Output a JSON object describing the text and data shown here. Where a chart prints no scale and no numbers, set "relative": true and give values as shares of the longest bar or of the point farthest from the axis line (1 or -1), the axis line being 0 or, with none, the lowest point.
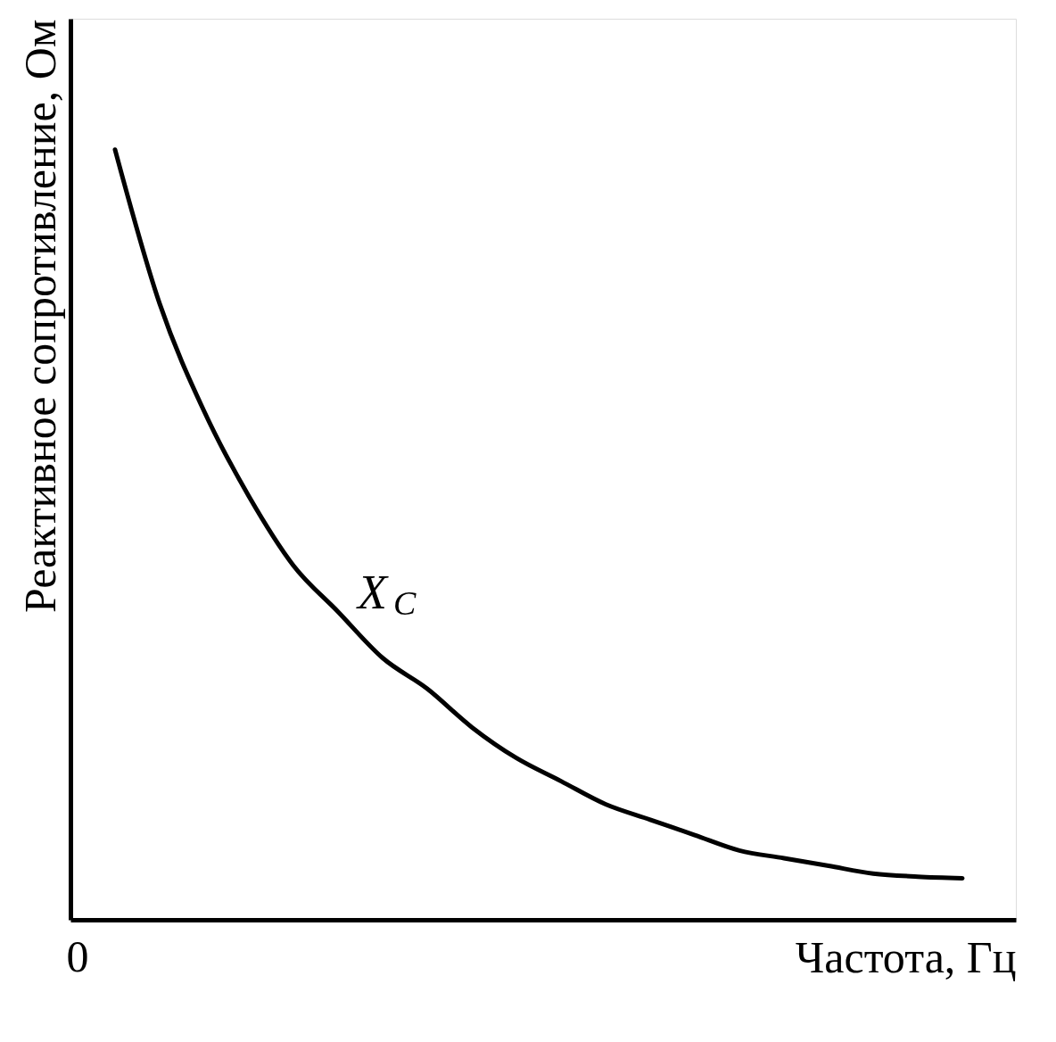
{
  "chart_data": {
    "type": "line",
    "relative": true,
    "xlabel": "Частота, Гц",
    "ylabel": "Реактивное сопротивление, Ом",
    "categories": [
      null,
      null,
      null,
      null,
      null,
      null,
      null,
      null,
      null,
      null,
      null,
      null,
      null,
      null,
      null,
      null,
      null,
      null,
      null,
      null
    ],
    "series": [
      {
        "name": "X$_{C}$",
        "color": "#000000",
        "values": [
          1,
          0.8,
          0.66,
          0.55,
          0.46,
          0.4,
          0.34,
          0.3,
          0.25,
          0.21,
          0.18,
          0.15,
          0.13,
          0.11,
          0.09,
          0.08,
          0.07,
          0.06,
          0.056,
          0.054
        ]
      }
    ],
    "annotations": [
      "0"
    ],
    "grid": false,
    "marker": "none",
    "line_style": "solid"
  }
}
